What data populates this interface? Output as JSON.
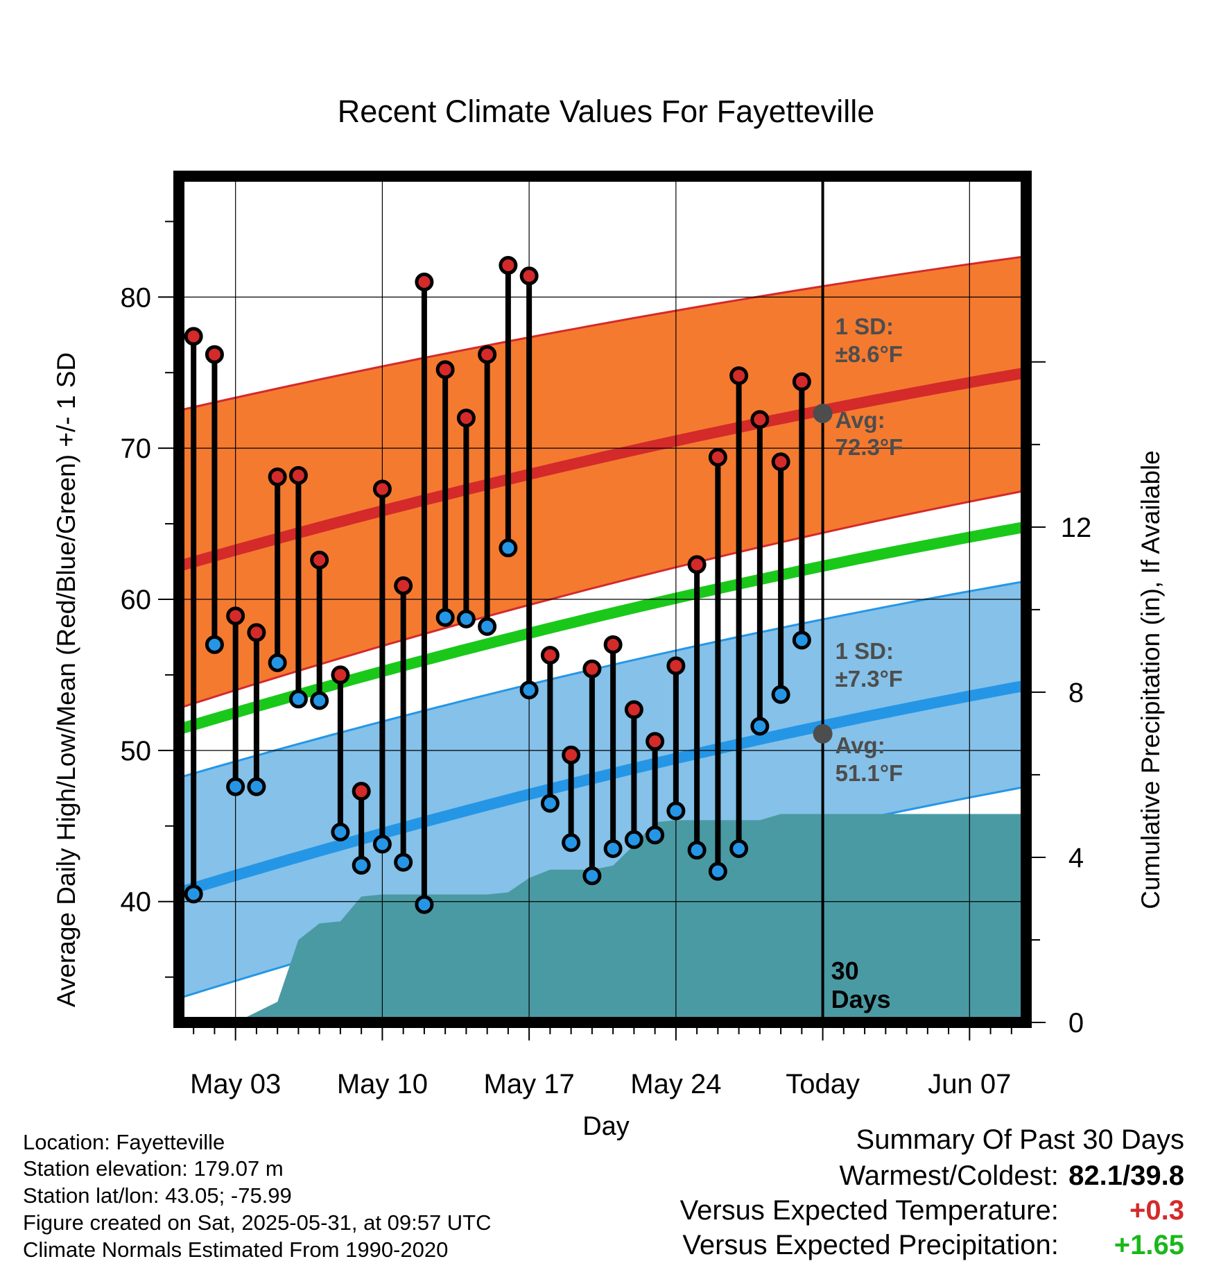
{
  "chart_data": {
    "type": "line",
    "title": "Recent Climate Values For Fayetteville",
    "xlabel": "Day",
    "ylabel": "Average Daily High/Low/Mean (Red/Blue/Green) +/- 1 SD",
    "y2label": "Cumulative Precipitation (in), If Available",
    "ylim": [
      32,
      88
    ],
    "y2lim": [
      0,
      20.5
    ],
    "yticks": [
      "40",
      "50",
      "60",
      "70",
      "80"
    ],
    "y2ticks": [
      "0",
      "4",
      "8",
      "12"
    ],
    "xticks": [
      "May 03",
      "May 10",
      "May 17",
      "May 24",
      "Today",
      "Jun 07"
    ],
    "x_start": "2025-05-01",
    "x_range_days": [
      -0.7,
      39.7
    ],
    "today_label": "30 Days",
    "normals": {
      "high_avg": [
        62.2,
        75.0
      ],
      "high_upper": [
        72.5,
        82.7
      ],
      "high_lower": [
        52.8,
        67.2
      ],
      "mean": [
        51.4,
        64.8
      ],
      "low_avg": [
        40.6,
        54.3
      ],
      "low_upper": [
        48.2,
        61.2
      ],
      "low_lower": [
        33.6,
        47.6
      ]
    },
    "annotations": {
      "high_sd": [
        "1 SD:",
        "±8.6°F"
      ],
      "high_avg": [
        "Avg:",
        "72.3°F"
      ],
      "low_sd": [
        "1 SD:",
        "±7.3°F"
      ],
      "low_avg": [
        "Avg:",
        "51.1°F"
      ],
      "high_avg_today": 72.3,
      "low_avg_today": 51.1
    },
    "series": [
      {
        "name": "High",
        "color": "#d42a2a",
        "dates": [
          "2025-05-01",
          "2025-05-02",
          "2025-05-03",
          "2025-05-04",
          "2025-05-05",
          "2025-05-06",
          "2025-05-07",
          "2025-05-08",
          "2025-05-09",
          "2025-05-10",
          "2025-05-11",
          "2025-05-12",
          "2025-05-13",
          "2025-05-14",
          "2025-05-15",
          "2025-05-16",
          "2025-05-17",
          "2025-05-18",
          "2025-05-19",
          "2025-05-20",
          "2025-05-21",
          "2025-05-22",
          "2025-05-23",
          "2025-05-24",
          "2025-05-25",
          "2025-05-26",
          "2025-05-27",
          "2025-05-28",
          "2025-05-29",
          "2025-05-30"
        ],
        "values": [
          77.4,
          76.2,
          58.9,
          57.8,
          68.1,
          68.2,
          62.6,
          55.0,
          47.3,
          67.3,
          60.9,
          81.0,
          75.2,
          72.0,
          76.2,
          82.1,
          81.4,
          56.3,
          49.7,
          55.4,
          57.0,
          52.7,
          50.6,
          55.6,
          62.3,
          69.4,
          74.8,
          71.9,
          69.1,
          74.4
        ]
      },
      {
        "name": "Low",
        "color": "#2596e6",
        "dates": [
          "2025-05-01",
          "2025-05-02",
          "2025-05-03",
          "2025-05-04",
          "2025-05-05",
          "2025-05-06",
          "2025-05-07",
          "2025-05-08",
          "2025-05-09",
          "2025-05-10",
          "2025-05-11",
          "2025-05-12",
          "2025-05-13",
          "2025-05-14",
          "2025-05-15",
          "2025-05-16",
          "2025-05-17",
          "2025-05-18",
          "2025-05-19",
          "2025-05-20",
          "2025-05-21",
          "2025-05-22",
          "2025-05-23",
          "2025-05-24",
          "2025-05-25",
          "2025-05-26",
          "2025-05-27",
          "2025-05-28",
          "2025-05-29",
          "2025-05-30"
        ],
        "values": [
          40.5,
          57.0,
          47.6,
          47.6,
          55.8,
          53.4,
          53.3,
          44.6,
          42.4,
          43.8,
          42.6,
          39.8,
          58.8,
          58.7,
          58.2,
          63.4,
          54.0,
          46.5,
          43.9,
          41.7,
          43.5,
          44.1,
          44.4,
          46.0,
          43.4,
          42.0,
          43.5,
          51.6,
          53.7,
          57.3
        ]
      }
    ],
    "precipitation": {
      "name": "Cumulative Precipitation",
      "color": "#4a9aa4",
      "dates": [
        "2025-05-01",
        "2025-05-02",
        "2025-05-03",
        "2025-05-04",
        "2025-05-05",
        "2025-05-06",
        "2025-05-07",
        "2025-05-08",
        "2025-05-09",
        "2025-05-10",
        "2025-05-11",
        "2025-05-12",
        "2025-05-13",
        "2025-05-14",
        "2025-05-15",
        "2025-05-16",
        "2025-05-17",
        "2025-05-18",
        "2025-05-19",
        "2025-05-20",
        "2025-05-21",
        "2025-05-22",
        "2025-05-23",
        "2025-05-24",
        "2025-05-25",
        "2025-05-26",
        "2025-05-27",
        "2025-05-28",
        "2025-05-29",
        "2025-05-30",
        "2025-05-31"
      ],
      "values": [
        0.0,
        0.0,
        0.0,
        0.25,
        0.5,
        2.0,
        2.4,
        2.45,
        3.05,
        3.1,
        3.1,
        3.1,
        3.1,
        3.1,
        3.1,
        3.15,
        3.5,
        3.7,
        3.7,
        3.7,
        3.8,
        4.3,
        4.85,
        4.9,
        4.9,
        4.9,
        4.9,
        4.9,
        5.05,
        5.05,
        5.05
      ],
      "extend_to_end": true
    },
    "today_line": "2025-05-31"
  },
  "info": {
    "location": "Location: Fayetteville",
    "elevation": "Station elevation: 179.07 m",
    "latlon": "Station lat/lon: 43.05; -75.99",
    "created": "Figure created on Sat, 2025-05-31, at 09:57 UTC",
    "normals": "Climate Normals Estimated From 1990-2020"
  },
  "summary": {
    "heading": "Summary Of Past 30 Days",
    "warm_label": "Warmest/Coldest:",
    "warm_value": "82.1/39.8",
    "temp_label": "Versus Expected Temperature:",
    "temp_value": "+0.3",
    "temp_color": "#d42a2a",
    "precip_label": "Versus Expected Precipitation:",
    "precip_value": "+1.65",
    "precip_color": "#19b81a"
  },
  "colors": {
    "high_band": "#f47a30",
    "high_line": "#d42a2a",
    "low_band": "#85c1e8",
    "low_line": "#2596e6",
    "mean_line": "#1ac81a",
    "precip": "#4a9aa4",
    "annotation": "#4d4d4d"
  }
}
